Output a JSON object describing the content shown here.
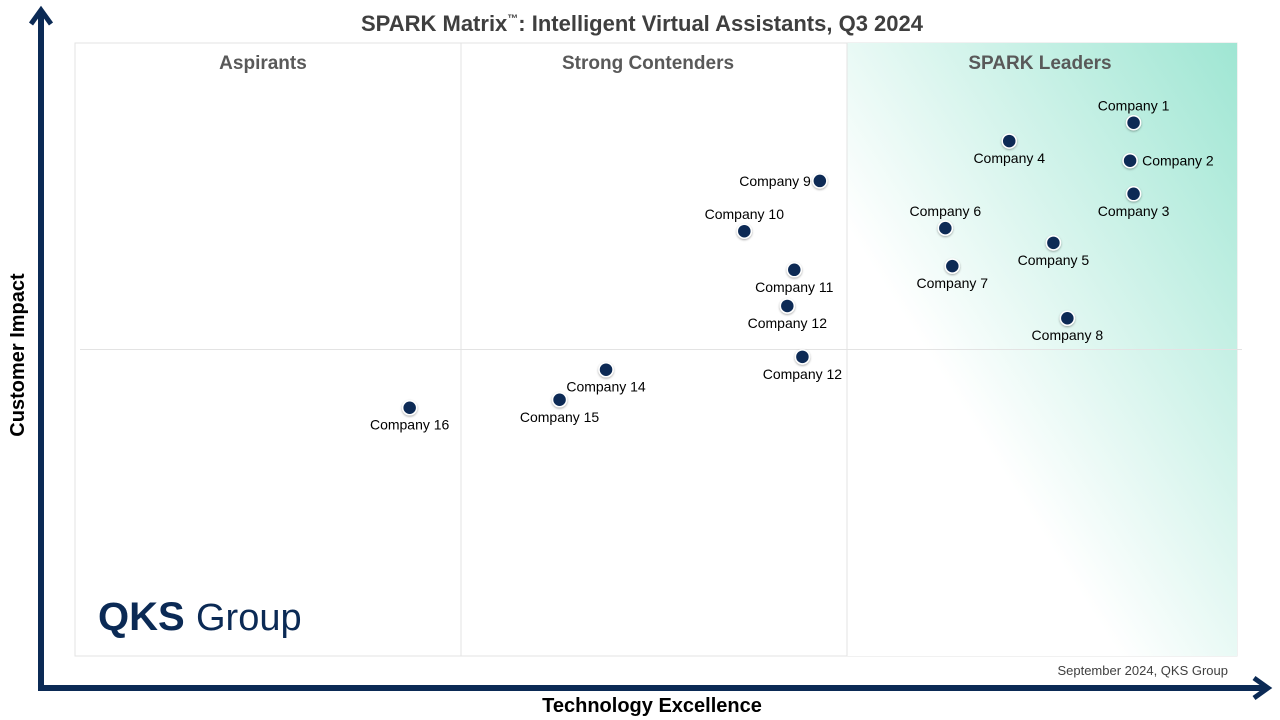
{
  "chart_data": {
    "type": "scatter",
    "title": "SPARK Matrix",
    "title_mark": "™",
    "title_suffix": ": Intelligent Virtual Assistants, Q3 2024",
    "xlabel": "Technology Excellence",
    "ylabel": "Customer Impact",
    "xlim": [
      0,
      100
    ],
    "ylim": [
      0,
      100
    ],
    "grid": false,
    "quadrants": [
      "Aspirants",
      "Strong Contenders",
      "SPARK Leaders"
    ],
    "footnote": "September 2024, QKS Group",
    "logo": {
      "bold": "QKS",
      "regular": "Group"
    },
    "colors": {
      "point": "#0b2a55",
      "axis": "#0b2a55",
      "leaders_gradient": "#9fe6d3"
    },
    "points": [
      {
        "name": "Company 1",
        "x": 91.1,
        "y": 87.0,
        "label": "above"
      },
      {
        "name": "Company 2",
        "x": 90.8,
        "y": 80.8,
        "label": "right"
      },
      {
        "name": "Company 3",
        "x": 91.1,
        "y": 75.4,
        "label": "below"
      },
      {
        "name": "Company 4",
        "x": 80.4,
        "y": 84.0,
        "label": "below"
      },
      {
        "name": "Company 5",
        "x": 84.2,
        "y": 67.4,
        "label": "below"
      },
      {
        "name": "Company 6",
        "x": 74.9,
        "y": 69.8,
        "label": "above"
      },
      {
        "name": "Company 7",
        "x": 75.5,
        "y": 63.6,
        "label": "below"
      },
      {
        "name": "Company 8",
        "x": 85.4,
        "y": 55.1,
        "label": "below"
      },
      {
        "name": "Company 9",
        "x": 64.1,
        "y": 77.5,
        "label": "left"
      },
      {
        "name": "Company 10",
        "x": 57.6,
        "y": 69.3,
        "label": "above"
      },
      {
        "name": "Company 11",
        "x": 61.9,
        "y": 63.0,
        "label": "below"
      },
      {
        "name": "Company 12",
        "x": 61.3,
        "y": 57.1,
        "label": "below"
      },
      {
        "name": "Company 12",
        "x": 62.6,
        "y": 48.8,
        "label": "below"
      },
      {
        "name": "Company 14",
        "x": 45.7,
        "y": 46.7,
        "label": "below"
      },
      {
        "name": "Company 15",
        "x": 41.7,
        "y": 41.8,
        "label": "below"
      },
      {
        "name": "Company 16",
        "x": 28.8,
        "y": 40.5,
        "label": "below"
      }
    ]
  }
}
